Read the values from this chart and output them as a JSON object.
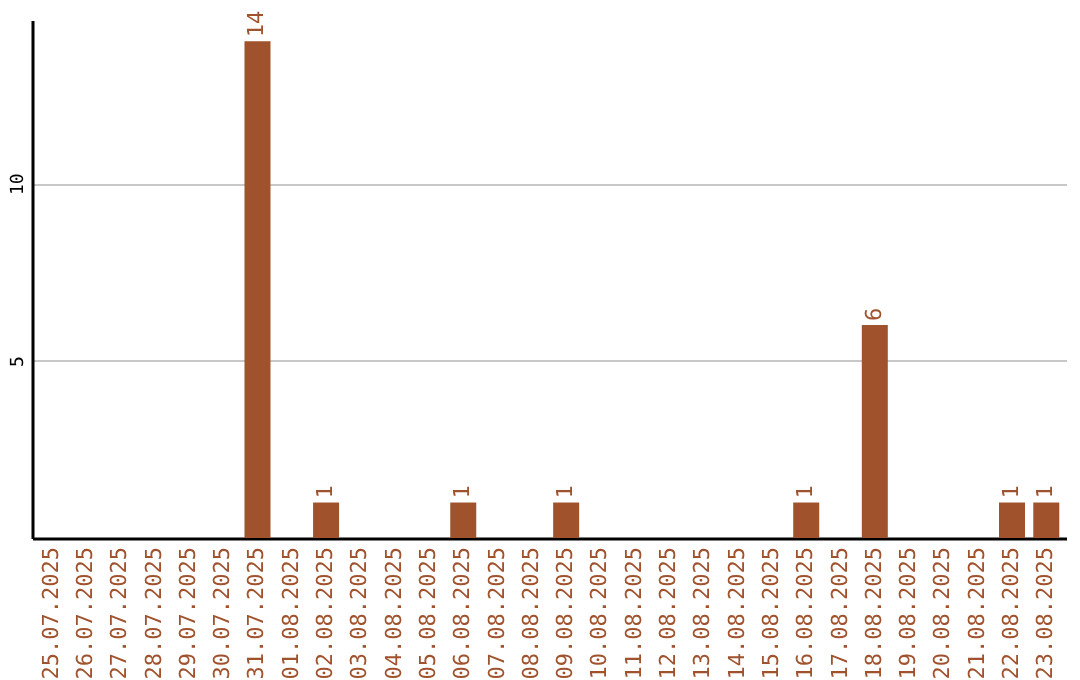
{
  "chart_data": {
    "type": "bar",
    "categories": [
      "25.07.2025",
      "26.07.2025",
      "27.07.2025",
      "28.07.2025",
      "29.07.2025",
      "30.07.2025",
      "31.07.2025",
      "01.08.2025",
      "02.08.2025",
      "03.08.2025",
      "04.08.2025",
      "05.08.2025",
      "06.08.2025",
      "07.08.2025",
      "08.08.2025",
      "09.08.2025",
      "10.08.2025",
      "11.08.2025",
      "12.08.2025",
      "13.08.2025",
      "14.08.2025",
      "15.08.2025",
      "16.08.2025",
      "17.08.2025",
      "18.08.2025",
      "19.08.2025",
      "20.08.2025",
      "21.08.2025",
      "22.08.2025",
      "23.08.2025"
    ],
    "values": [
      0,
      0,
      0,
      0,
      0,
      0,
      14,
      0,
      1,
      0,
      0,
      0,
      1,
      0,
      0,
      1,
      0,
      0,
      0,
      0,
      0,
      0,
      1,
      0,
      6,
      0,
      0,
      0,
      1,
      1
    ],
    "value_labels": [
      null,
      null,
      null,
      null,
      null,
      null,
      "14",
      null,
      "1",
      null,
      null,
      null,
      "1",
      null,
      null,
      "1",
      null,
      null,
      null,
      null,
      null,
      null,
      "1",
      null,
      "6",
      null,
      null,
      null,
      "1",
      "1"
    ],
    "color": "#a0522d",
    "ylim": [
      0,
      14.6
    ],
    "yticks": [
      5,
      10
    ],
    "grid": "y"
  }
}
